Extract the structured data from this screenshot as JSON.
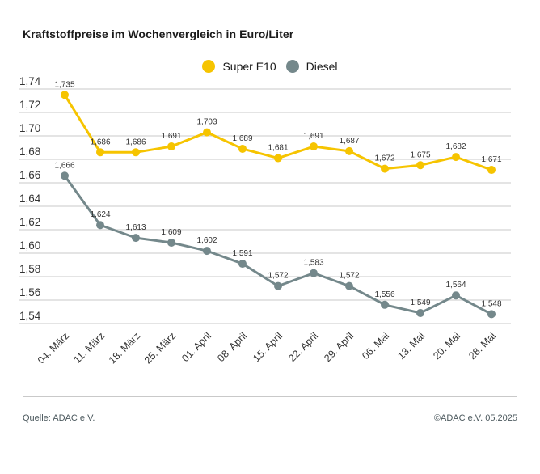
{
  "title": "Kraftstoffpreise im Wochenvergleich in Euro/Liter",
  "legend": {
    "items": [
      {
        "label": "Super E10",
        "color": "#f6c400"
      },
      {
        "label": "Diesel",
        "color": "#74888b"
      }
    ]
  },
  "chart_data": {
    "type": "line",
    "title": "Kraftstoffpreise im Wochenvergleich in Euro/Liter",
    "xlabel": "",
    "ylabel": "",
    "categories": [
      "04. März",
      "11. März",
      "18. März",
      "25. März",
      "01. April",
      "08. April",
      "15. April",
      "22. April",
      "29. April",
      "06. Mai",
      "13. Mai",
      "20. Mai",
      "28. Mai"
    ],
    "series": [
      {
        "name": "Super E10",
        "color": "#f6c400",
        "values": [
          1.735,
          1.686,
          1.686,
          1.691,
          1.703,
          1.689,
          1.681,
          1.691,
          1.687,
          1.672,
          1.675,
          1.682,
          1.671
        ],
        "labels": [
          "1,735",
          "1,686",
          "1,686",
          "1,691",
          "1,703",
          "1,689",
          "1,681",
          "1,691",
          "1,687",
          "1,672",
          "1,675",
          "1,682",
          "1,671"
        ]
      },
      {
        "name": "Diesel",
        "color": "#74888b",
        "values": [
          1.666,
          1.624,
          1.613,
          1.609,
          1.602,
          1.591,
          1.572,
          1.583,
          1.572,
          1.556,
          1.549,
          1.564,
          1.548
        ],
        "labels": [
          "1,666",
          "1,624",
          "1,613",
          "1,609",
          "1,602",
          "1,591",
          "1,572",
          "1,583",
          "1,572",
          "1,556",
          "1,549",
          "1,564",
          "1,548"
        ]
      }
    ],
    "ylim": [
      1.54,
      1.74
    ],
    "ytick_step": 0.02,
    "yticks": [
      "1,74",
      "1,72",
      "1,70",
      "1,68",
      "1,66",
      "1,64",
      "1,62",
      "1,60",
      "1,58",
      "1,56",
      "1,54"
    ],
    "ytick_values": [
      1.74,
      1.72,
      1.7,
      1.68,
      1.66,
      1.64,
      1.62,
      1.6,
      1.58,
      1.56,
      1.54
    ],
    "grid": true,
    "legend_position": "top-center"
  },
  "footer": {
    "source": "Quelle: ADAC e.V.",
    "copyright": "©ADAC e.V. 05.2025"
  },
  "colors": {
    "grid": "#c9c9c9",
    "title_text": "#1a1a1a",
    "axis_text": "#333333",
    "point_label_text": "#333333",
    "footer_text": "#4a575c"
  }
}
